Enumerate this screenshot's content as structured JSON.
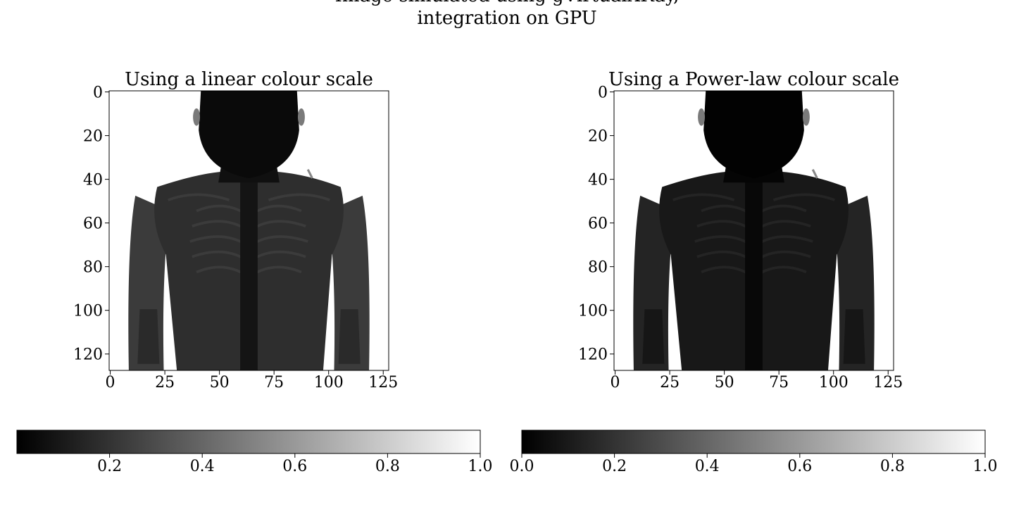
{
  "figure": {
    "title_line1": "Image simulated using gVirtualXRay,",
    "title_line2": "integration on GPU"
  },
  "chart_data": [
    {
      "type": "heatmap",
      "title": "Using a linear colour scale",
      "colour_scale": "linear",
      "colormap": "gray",
      "image_size": [
        128,
        128
      ],
      "xlim": [
        0,
        127
      ],
      "ylim": [
        127,
        0
      ],
      "xticks": [
        0,
        25,
        50,
        75,
        100,
        125
      ],
      "xtick_labels": [
        "0",
        "25",
        "50",
        "75",
        "100",
        "125"
      ],
      "yticks": [
        0,
        20,
        40,
        60,
        80,
        100,
        120
      ],
      "ytick_labels": [
        "0",
        "20",
        "40",
        "60",
        "80",
        "100",
        "120"
      ],
      "colorbar": {
        "orientation": "horizontal",
        "range": [
          0.0,
          1.0
        ],
        "ticks": [
          0.2,
          0.4,
          0.6,
          0.8,
          1.0
        ],
        "tick_labels": [
          "0.2",
          "0.4",
          "0.6",
          "0.8",
          "1.0"
        ]
      }
    },
    {
      "type": "heatmap",
      "title": "Using a Power-law colour scale",
      "colour_scale": "power-law",
      "colormap": "gray",
      "image_size": [
        128,
        128
      ],
      "xlim": [
        0,
        127
      ],
      "ylim": [
        127,
        0
      ],
      "xticks": [
        0,
        25,
        50,
        75,
        100,
        125
      ],
      "xtick_labels": [
        "0",
        "25",
        "50",
        "75",
        "100",
        "125"
      ],
      "yticks": [
        0,
        20,
        40,
        60,
        80,
        100,
        120
      ],
      "ytick_labels": [
        "0",
        "20",
        "40",
        "60",
        "80",
        "100",
        "120"
      ],
      "colorbar": {
        "orientation": "horizontal",
        "range": [
          0.0,
          1.0
        ],
        "ticks": [
          0.0,
          0.2,
          0.4,
          0.6,
          0.8,
          1.0
        ],
        "tick_labels": [
          "0.0",
          "0.2",
          "0.4",
          "0.6",
          "0.8",
          "1.0"
        ]
      }
    }
  ]
}
